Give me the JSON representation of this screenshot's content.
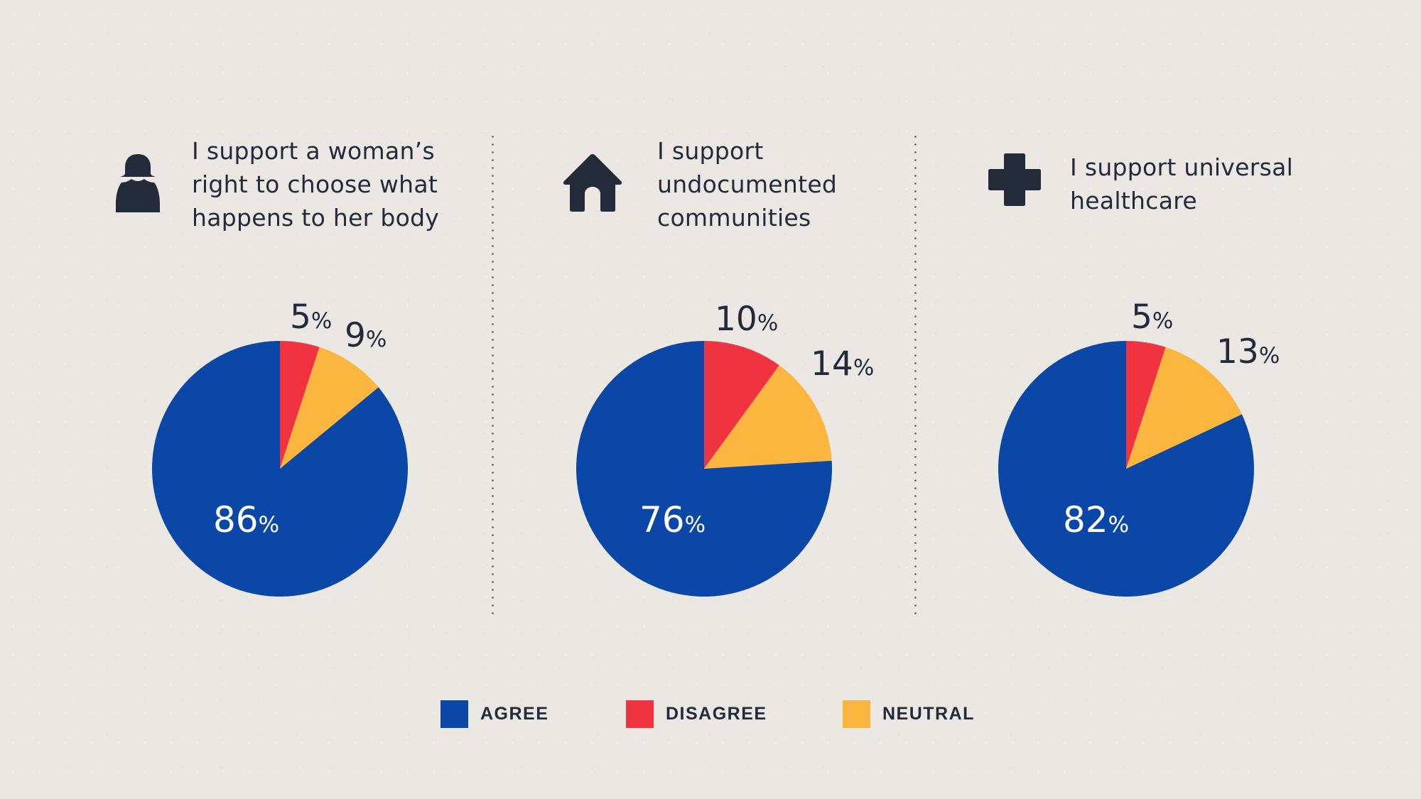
{
  "colors": {
    "agree": "#0b47a6",
    "disagree": "#ef3340",
    "neutral": "#fbb63f",
    "text": "#232b3a",
    "background": "#ebe8e4"
  },
  "legend": [
    {
      "key": "agree",
      "label": "AGREE"
    },
    {
      "key": "disagree",
      "label": "DISAGREE"
    },
    {
      "key": "neutral",
      "label": "NEUTRAL"
    }
  ],
  "panels": [
    {
      "icon": "woman-icon",
      "statement_lines": [
        "I support a woman’s",
        "right to choose what",
        "happens to her body"
      ]
    },
    {
      "icon": "house-icon",
      "statement_lines": [
        "I support",
        "undocumented",
        "communities"
      ]
    },
    {
      "icon": "medical-cross-icon",
      "statement_lines": [
        "I support universal",
        "healthcare"
      ]
    }
  ],
  "chart_data": [
    {
      "type": "pie",
      "title": "I support a woman’s right to choose what happens to her body",
      "categories": [
        "AGREE",
        "DISAGREE",
        "NEUTRAL"
      ],
      "values": [
        86,
        5,
        9
      ],
      "labels": [
        "86",
        "5",
        "9"
      ],
      "unit": "%",
      "legend": "bottom"
    },
    {
      "type": "pie",
      "title": "I support undocumented communities",
      "categories": [
        "AGREE",
        "DISAGREE",
        "NEUTRAL"
      ],
      "values": [
        76,
        10,
        14
      ],
      "labels": [
        "76",
        "10",
        "14"
      ],
      "unit": "%",
      "legend": "bottom"
    },
    {
      "type": "pie",
      "title": "I support universal healthcare",
      "categories": [
        "AGREE",
        "DISAGREE",
        "NEUTRAL"
      ],
      "values": [
        82,
        5,
        13
      ],
      "labels": [
        "82",
        "5",
        "13"
      ],
      "unit": "%",
      "legend": "bottom"
    }
  ]
}
